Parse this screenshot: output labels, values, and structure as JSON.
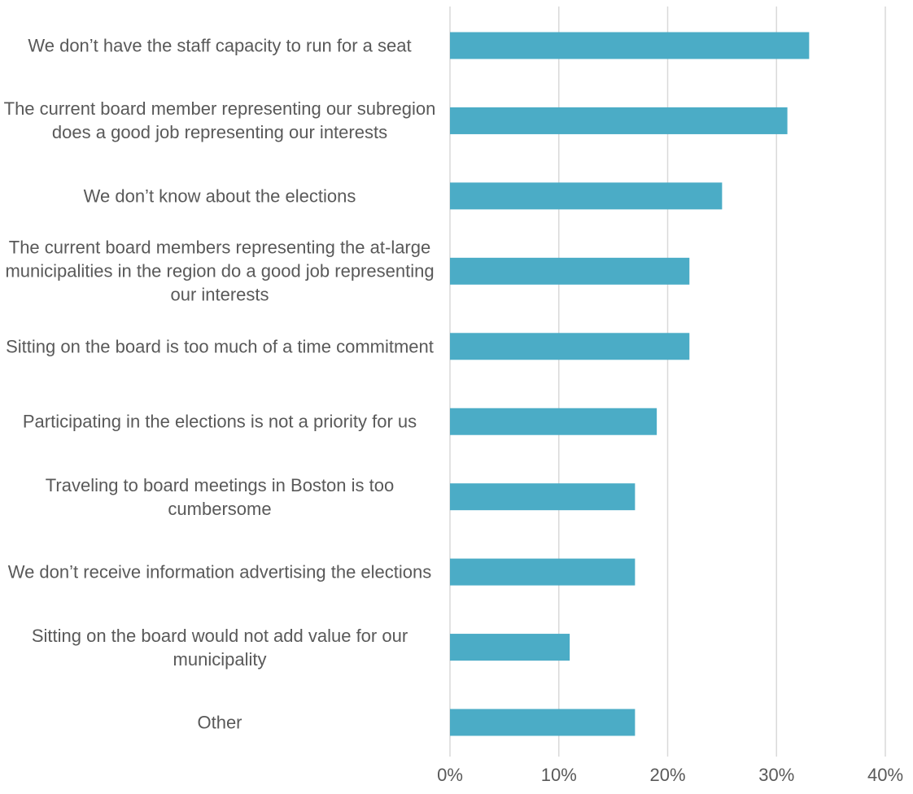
{
  "chart_data": {
    "type": "barh",
    "categories": [
      "We don’t have the staff capacity to run for a seat",
      "The current board member representing our subregion does a good job representing our interests",
      "We don’t know about the elections",
      "The current board members representing the at-large municipalities in the region do a good job representing our interests",
      "Sitting on the board is too much of a time commitment",
      "Participating in the elections is not a priority for us",
      "Traveling to board meetings in Boston is too cumbersome",
      "We don’t receive information advertising the elections",
      "Sitting on the board would not add value for our municipality",
      "Other"
    ],
    "values": [
      33,
      31,
      25,
      22,
      22,
      19,
      17,
      17,
      11,
      17
    ],
    "color": "#4bacc6",
    "xlim": [
      0,
      40
    ],
    "xticks": [
      {
        "value": 0,
        "label": "0%"
      },
      {
        "value": 10,
        "label": "10%"
      },
      {
        "value": 20,
        "label": "20%"
      },
      {
        "value": 30,
        "label": "30%"
      },
      {
        "value": 40,
        "label": "40%"
      }
    ],
    "grid": true
  }
}
